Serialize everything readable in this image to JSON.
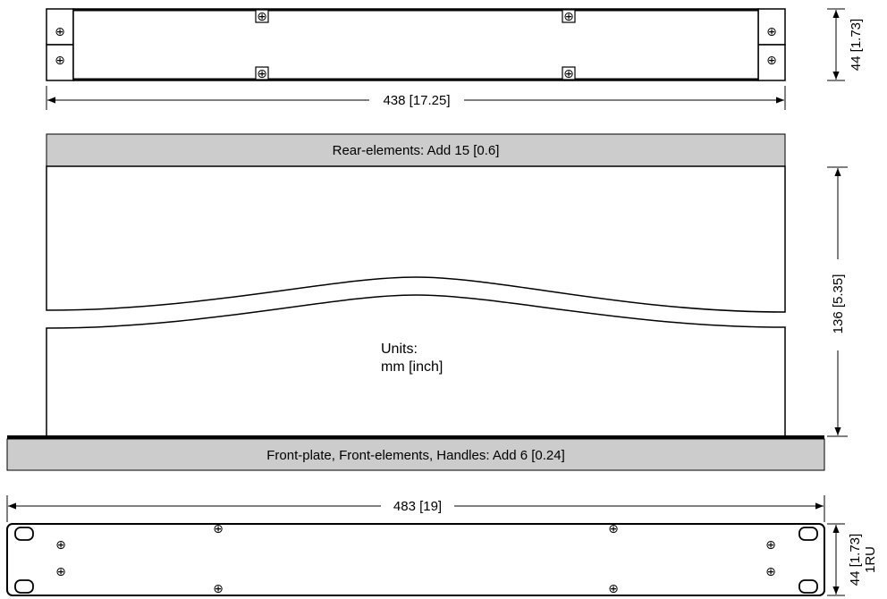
{
  "top_view": {
    "width_dim": "438 [17.25]",
    "height_dim": "44 [1.73]"
  },
  "side_view": {
    "rear_band": "Rear-elements: Add  15 [0.6]",
    "front_band": "Front-plate, Front-elements, Handles: Add  6 [0.24]",
    "depth_dim": "136 [5.35]",
    "units_label": "Units:",
    "units_value": "mm [inch]"
  },
  "front_view": {
    "width_dim": "483 [19]",
    "height_dim": "44 [1.73]",
    "rack_units": "1RU"
  },
  "colors": {
    "band_fill": "#cccccc",
    "line": "#000000",
    "background": "#ffffff"
  },
  "icons": {
    "screw": "⊕"
  }
}
